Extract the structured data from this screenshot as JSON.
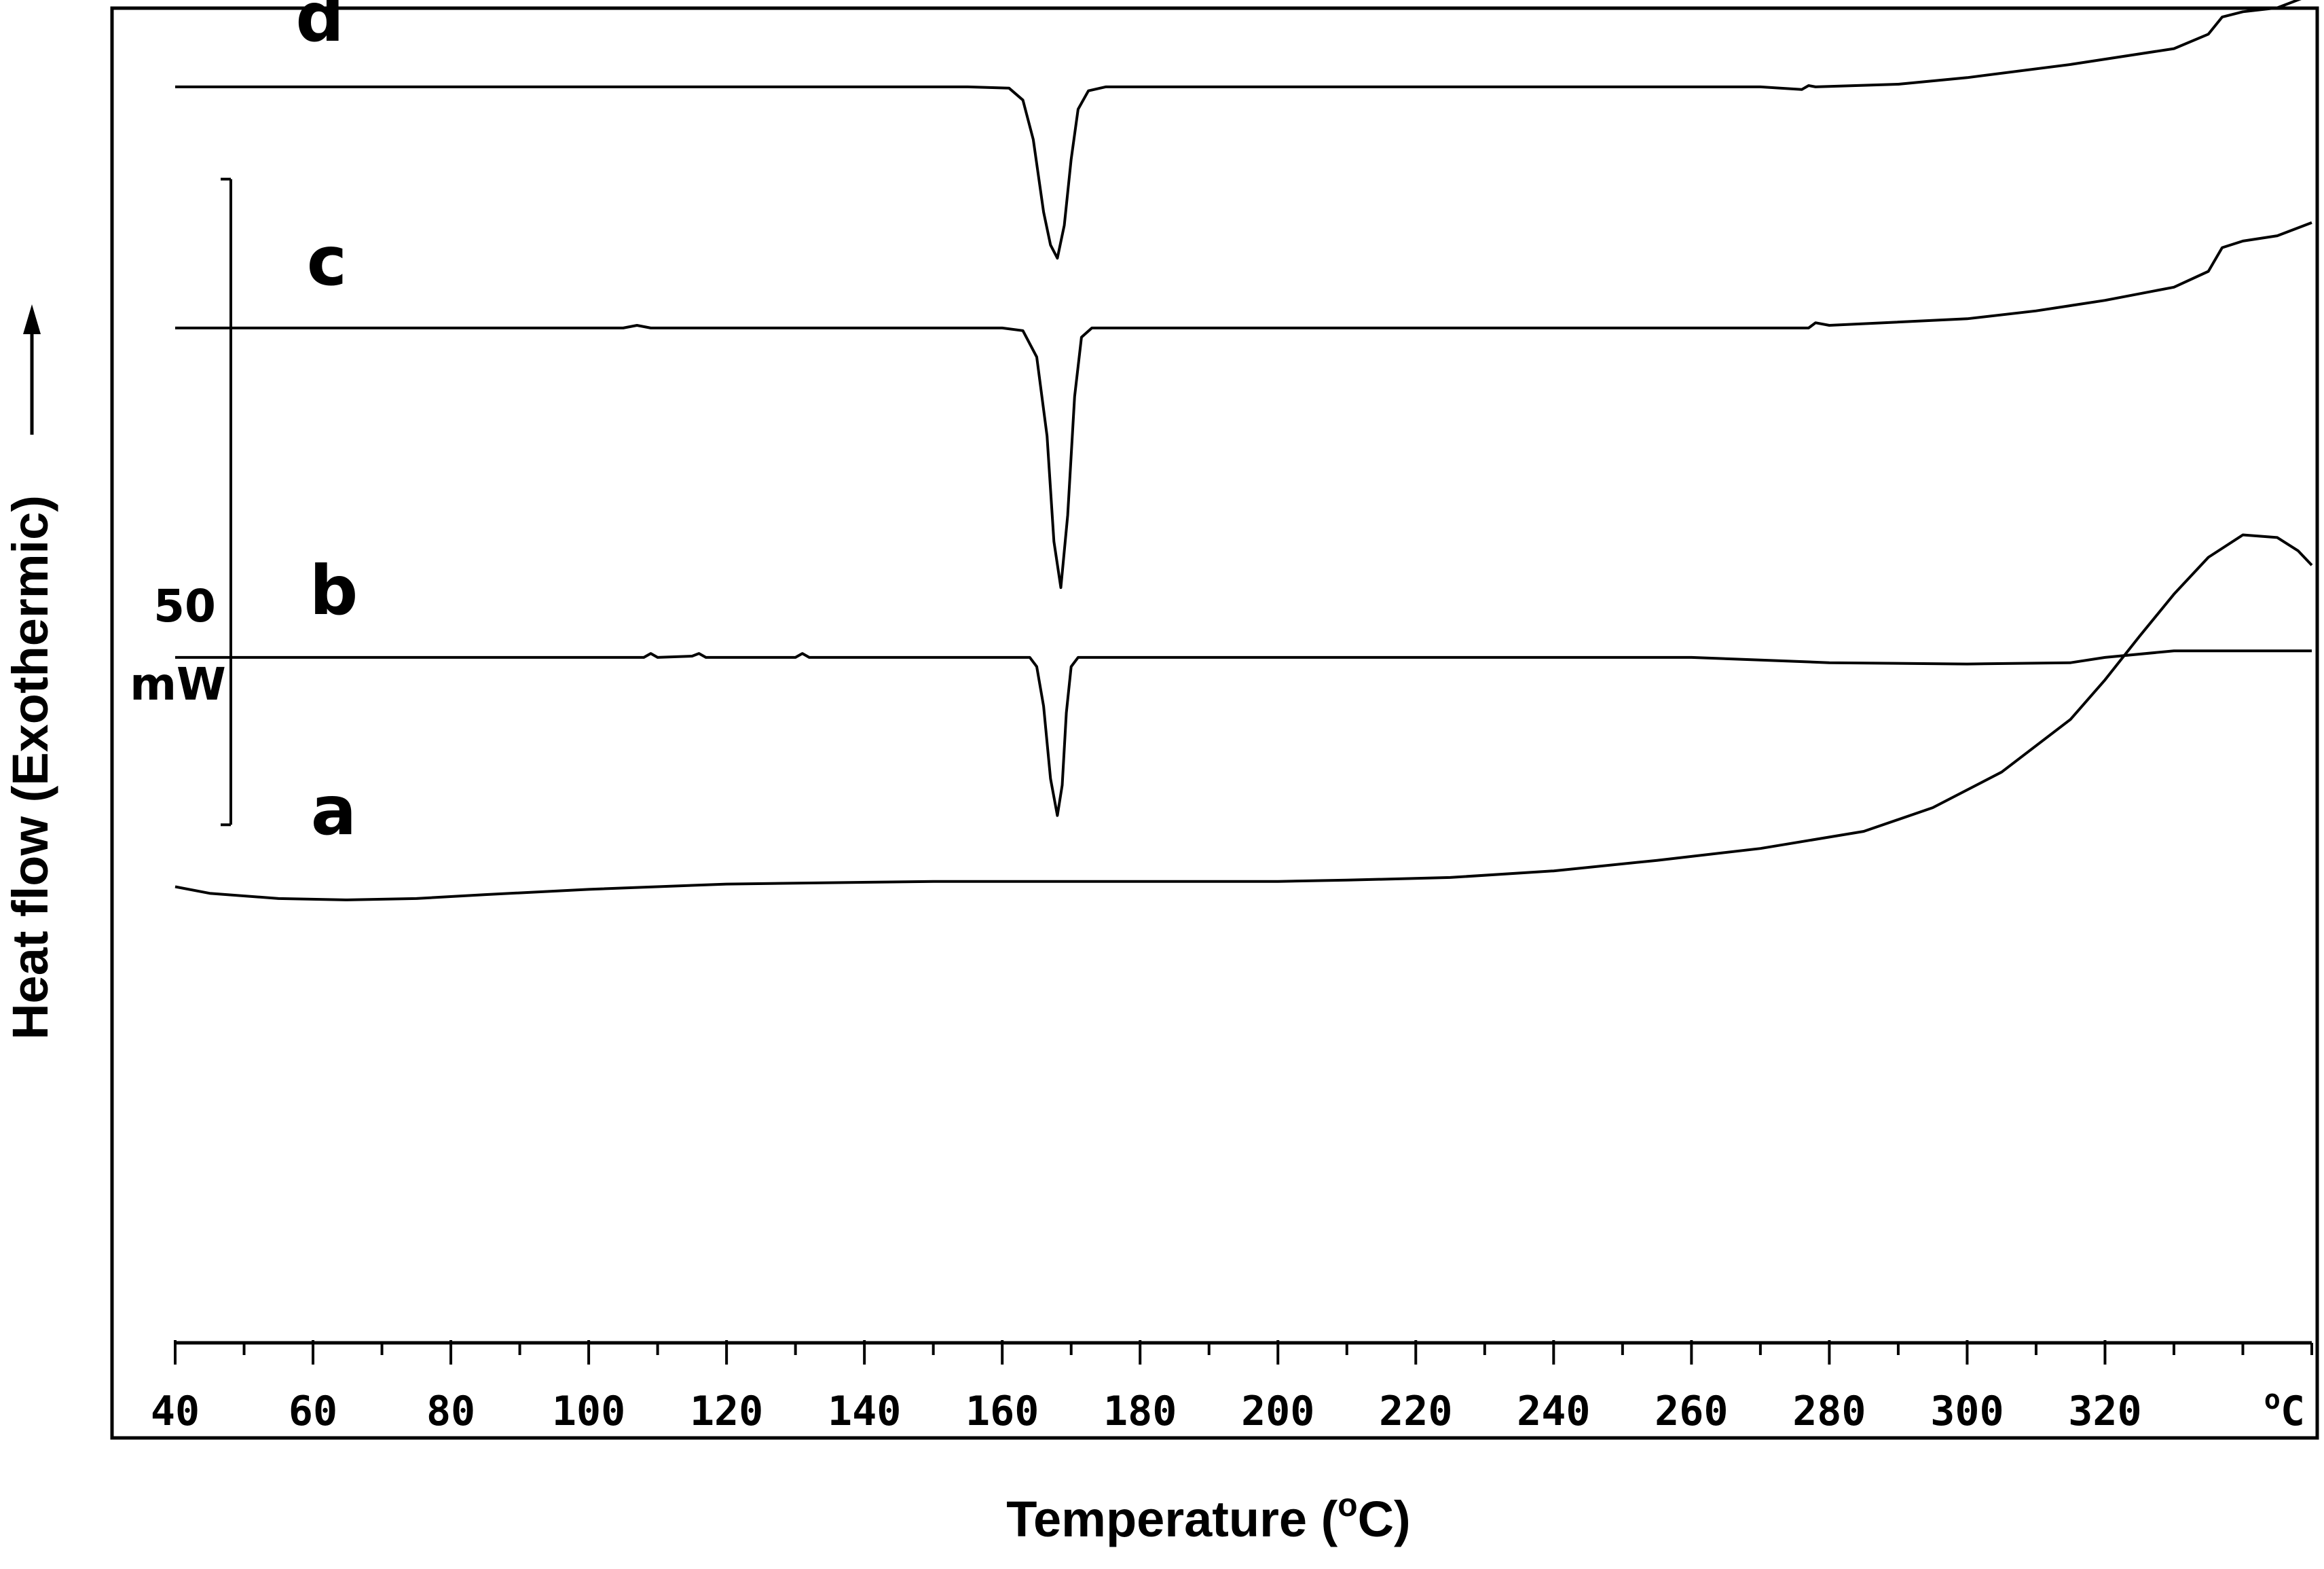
{
  "chart_data": {
    "type": "line",
    "xlabel": "Temperature (",
    "xlabel_sup": "o",
    "xlabel_end": "C)",
    "ylabel": "Heat flow (Exothermic)",
    "ylabel_arrow": "→",
    "x_unit_label": "oC",
    "x_range": [
      40,
      350
    ],
    "x_ticks": [
      "40",
      "60",
      "80",
      "100",
      "120",
      "140",
      "160",
      "180",
      "200",
      "220",
      "240",
      "260",
      "280",
      "300",
      "320"
    ],
    "x_ticks_values": [
      40,
      60,
      80,
      100,
      120,
      140,
      160,
      180,
      200,
      220,
      240,
      260,
      280,
      300,
      320
    ],
    "y_range": [
      0,
      100
    ],
    "scale_bar": {
      "value_label": "50",
      "unit_label": "mW",
      "y_from": 40.5,
      "y_to": 89.5
    },
    "grid": false,
    "series": [
      {
        "name": "d",
        "points": [
          [
            40,
            96.5
          ],
          [
            60,
            96.5
          ],
          [
            80,
            96.5
          ],
          [
            100,
            96.5
          ],
          [
            120,
            96.5
          ],
          [
            140,
            96.5
          ],
          [
            155,
            96.5
          ],
          [
            161,
            96.4
          ],
          [
            163,
            95.5
          ],
          [
            164.5,
            92.5
          ],
          [
            166,
            87
          ],
          [
            167,
            84.5
          ],
          [
            168,
            83.5
          ],
          [
            169,
            86
          ],
          [
            170,
            91
          ],
          [
            171,
            94.8
          ],
          [
            172.5,
            96.2
          ],
          [
            175,
            96.5
          ],
          [
            200,
            96.5
          ],
          [
            240,
            96.5
          ],
          [
            270,
            96.5
          ],
          [
            276,
            96.3
          ],
          [
            277,
            96.6
          ],
          [
            278,
            96.5
          ],
          [
            290,
            96.7
          ],
          [
            300,
            97.2
          ],
          [
            315,
            98.2
          ],
          [
            330,
            99.4
          ],
          [
            335,
            100.5
          ],
          [
            337,
            101.8
          ],
          [
            340,
            102.2
          ],
          [
            345,
            102.5
          ],
          [
            350,
            103.5
          ]
        ]
      },
      {
        "name": "c",
        "points": [
          [
            40,
            78.2
          ],
          [
            80,
            78.2
          ],
          [
            105,
            78.2
          ],
          [
            107,
            78.4
          ],
          [
            109,
            78.2
          ],
          [
            140,
            78.2
          ],
          [
            160,
            78.2
          ],
          [
            163,
            78
          ],
          [
            165,
            76
          ],
          [
            166.5,
            70
          ],
          [
            167.5,
            62
          ],
          [
            168.5,
            58.5
          ],
          [
            169.5,
            64
          ],
          [
            170.5,
            73
          ],
          [
            171.5,
            77.5
          ],
          [
            173,
            78.2
          ],
          [
            200,
            78.2
          ],
          [
            255,
            78.2
          ],
          [
            260,
            78.2
          ],
          [
            277,
            78.2
          ],
          [
            278,
            78.6
          ],
          [
            280,
            78.4
          ],
          [
            300,
            78.9
          ],
          [
            310,
            79.5
          ],
          [
            320,
            80.3
          ],
          [
            330,
            81.3
          ],
          [
            335,
            82.5
          ],
          [
            337,
            84.3
          ],
          [
            340,
            84.8
          ],
          [
            345,
            85.2
          ],
          [
            350,
            86.2
          ]
        ]
      },
      {
        "name": "b",
        "points": [
          [
            40,
            53.2
          ],
          [
            80,
            53.2
          ],
          [
            108,
            53.2
          ],
          [
            109,
            53.5
          ],
          [
            110,
            53.2
          ],
          [
            115,
            53.3
          ],
          [
            116,
            53.5
          ],
          [
            117,
            53.2
          ],
          [
            130,
            53.2
          ],
          [
            131,
            53.5
          ],
          [
            132,
            53.2
          ],
          [
            155,
            53.2
          ],
          [
            164,
            53.2
          ],
          [
            165,
            52.5
          ],
          [
            166,
            49.5
          ],
          [
            167,
            44
          ],
          [
            168,
            41.2
          ],
          [
            168.7,
            43.5
          ],
          [
            169.3,
            49
          ],
          [
            170,
            52.5
          ],
          [
            171,
            53.2
          ],
          [
            200,
            53.2
          ],
          [
            240,
            53.2
          ],
          [
            260,
            53.2
          ],
          [
            270,
            53
          ],
          [
            280,
            52.8
          ],
          [
            300,
            52.7
          ],
          [
            315,
            52.8
          ],
          [
            320,
            53.2
          ],
          [
            330,
            53.7
          ],
          [
            350,
            53.7
          ]
        ]
      },
      {
        "name": "a",
        "points": [
          [
            40,
            35.8
          ],
          [
            45,
            35.3
          ],
          [
            55,
            34.9
          ],
          [
            65,
            34.8
          ],
          [
            75,
            34.9
          ],
          [
            85,
            35.2
          ],
          [
            100,
            35.6
          ],
          [
            120,
            36
          ],
          [
            150,
            36.2
          ],
          [
            180,
            36.2
          ],
          [
            200,
            36.2
          ],
          [
            210,
            36.3
          ],
          [
            225,
            36.5
          ],
          [
            240,
            37
          ],
          [
            255,
            37.8
          ],
          [
            270,
            38.7
          ],
          [
            285,
            40
          ],
          [
            295,
            41.8
          ],
          [
            305,
            44.5
          ],
          [
            315,
            48.5
          ],
          [
            320,
            51.5
          ],
          [
            325,
            54.8
          ],
          [
            330,
            58
          ],
          [
            335,
            60.8
          ],
          [
            340,
            62.5
          ],
          [
            345,
            62.3
          ],
          [
            348,
            61.3
          ],
          [
            350,
            60.2
          ]
        ]
      }
    ],
    "annotations": [
      "a",
      "b",
      "c",
      "d"
    ]
  }
}
